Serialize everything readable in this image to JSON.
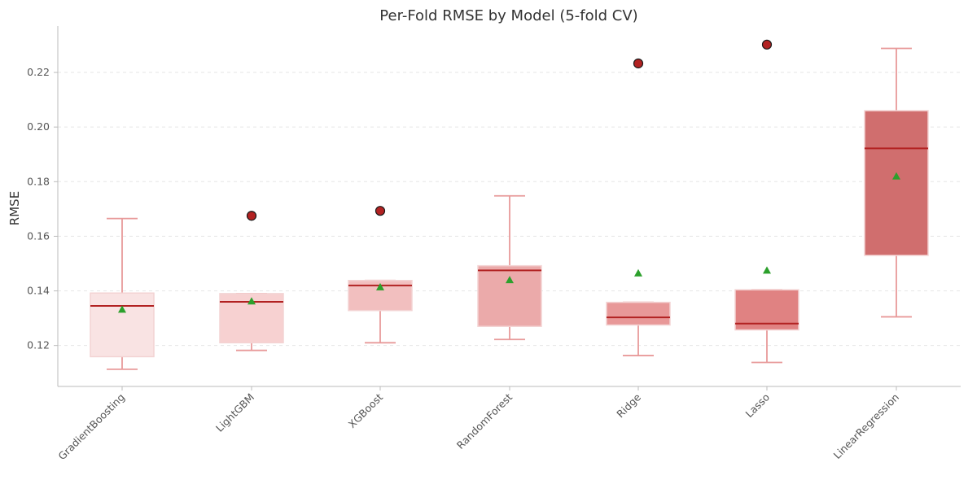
{
  "chart_data": {
    "type": "box",
    "title": "Per-Fold RMSE by Model (5-fold CV)",
    "xlabel": "",
    "ylabel": "RMSE",
    "ylim": [
      0.105,
      0.237
    ],
    "yticks": [
      "0.12",
      "0.14",
      "0.16",
      "0.18",
      "0.20",
      "0.22"
    ],
    "grid": "y-dashed",
    "categories": [
      "GradientBoosting",
      "LightGBM",
      "XGBoost",
      "RandomForest",
      "Ridge",
      "Lasso",
      "LinearRegression"
    ],
    "boxes": [
      {
        "name": "GradientBoosting",
        "whisker_low": 0.1113,
        "q1": 0.1159,
        "median": 0.1345,
        "q3": 0.1392,
        "whisker_high": 0.1665,
        "mean": 0.1332,
        "outliers": [],
        "color": "#f9e3e3"
      },
      {
        "name": "LightGBM",
        "whisker_low": 0.1182,
        "q1": 0.121,
        "median": 0.136,
        "q3": 0.139,
        "whisker_high": 0.139,
        "mean": 0.1362,
        "outliers": [
          0.1675
        ],
        "color": "#f7d1d1"
      },
      {
        "name": "XGBoost",
        "whisker_low": 0.121,
        "q1": 0.1328,
        "median": 0.142,
        "q3": 0.1438,
        "whisker_high": 0.1438,
        "mean": 0.1414,
        "outliers": [
          0.1693
        ],
        "color": "#f2bfbf"
      },
      {
        "name": "RandomForest",
        "whisker_low": 0.1222,
        "q1": 0.127,
        "median": 0.1475,
        "q3": 0.1492,
        "whisker_high": 0.1748,
        "mean": 0.144,
        "outliers": [],
        "color": "#ebaaaa"
      },
      {
        "name": "Ridge",
        "whisker_low": 0.1163,
        "q1": 0.1275,
        "median": 0.1303,
        "q3": 0.1358,
        "whisker_high": 0.1358,
        "mean": 0.1465,
        "outliers": [
          0.2233
        ],
        "color": "#e89898"
      },
      {
        "name": "Lasso",
        "whisker_low": 0.1138,
        "q1": 0.1257,
        "median": 0.128,
        "q3": 0.1404,
        "whisker_high": 0.1404,
        "mean": 0.1475,
        "outliers": [
          0.2302
        ],
        "color": "#e08282"
      },
      {
        "name": "LinearRegression",
        "whisker_low": 0.1305,
        "q1": 0.153,
        "median": 0.1922,
        "q3": 0.206,
        "whisker_high": 0.2288,
        "mean": 0.182,
        "outliers": [],
        "color": "#d06e6e"
      }
    ],
    "colors": {
      "whisker": "#e89a9a",
      "median": "#b22222",
      "mean_marker": "#2ca02c",
      "outlier_fill": "#b22222",
      "outlier_edge": "#1a1a1a",
      "axis": "#bbbbbb",
      "grid": "#e6e6e6"
    }
  }
}
